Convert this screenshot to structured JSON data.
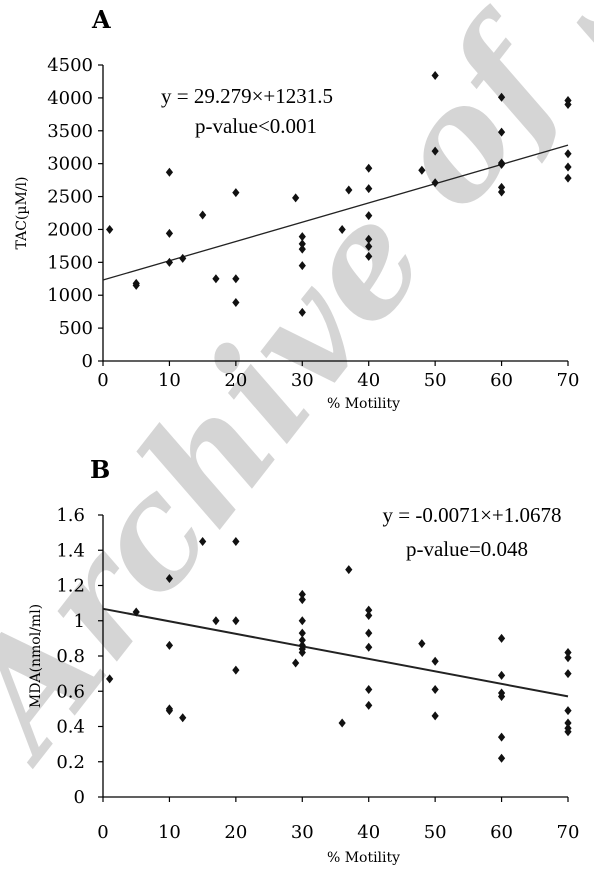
{
  "watermark": "Archive of SID",
  "chart_data": [
    {
      "type": "scatter",
      "panel": "A",
      "xlabel": "% Motility",
      "ylabel": "TAC(µM/l)",
      "xlim": [
        0,
        70
      ],
      "ylim": [
        0,
        4500
      ],
      "xticks": [
        0,
        10,
        20,
        30,
        40,
        50,
        60,
        70
      ],
      "yticks": [
        0,
        500,
        1000,
        1500,
        2000,
        2500,
        3000,
        3500,
        4000,
        4500
      ],
      "equation": "y = 29.279×+1231.5",
      "pvalue": "p-value<0.001",
      "trendline": {
        "slope": 29.279,
        "intercept": 1231.5
      },
      "grid": false,
      "points": [
        [
          1,
          2000
        ],
        [
          5,
          1150
        ],
        [
          5,
          1180
        ],
        [
          10,
          2870
        ],
        [
          10,
          1940
        ],
        [
          10,
          1500
        ],
        [
          12,
          1560
        ],
        [
          15,
          2220
        ],
        [
          17,
          1250
        ],
        [
          20,
          2560
        ],
        [
          20,
          1250
        ],
        [
          20,
          890
        ],
        [
          29,
          2480
        ],
        [
          30,
          1890
        ],
        [
          30,
          1780
        ],
        [
          30,
          1700
        ],
        [
          30,
          1450
        ],
        [
          30,
          740
        ],
        [
          36,
          2000
        ],
        [
          37,
          2600
        ],
        [
          40,
          2930
        ],
        [
          40,
          2620
        ],
        [
          40,
          2210
        ],
        [
          40,
          1850
        ],
        [
          40,
          1740
        ],
        [
          40,
          1590
        ],
        [
          48,
          2900
        ],
        [
          50,
          4340
        ],
        [
          50,
          3190
        ],
        [
          50,
          2710
        ],
        [
          60,
          4010
        ],
        [
          60,
          3480
        ],
        [
          60,
          3010
        ],
        [
          60,
          2990
        ],
        [
          60,
          2640
        ],
        [
          60,
          2570
        ],
        [
          70,
          3960
        ],
        [
          70,
          3900
        ],
        [
          70,
          3150
        ],
        [
          70,
          2950
        ],
        [
          70,
          2780
        ]
      ]
    },
    {
      "type": "scatter",
      "panel": "B",
      "xlabel": "% Motility",
      "ylabel": "MDA(nmol/ml)",
      "xlim": [
        0,
        70
      ],
      "ylim": [
        0,
        1.6
      ],
      "xticks": [
        0,
        10,
        20,
        30,
        40,
        50,
        60,
        70
      ],
      "yticks": [
        0,
        0.2,
        0.4,
        0.6,
        0.8,
        1,
        1.2,
        1.4,
        1.6
      ],
      "ytick_labels": [
        "0",
        "0.2",
        "0.4",
        "0.6",
        "0.8",
        "1",
        "1.2",
        "1.4",
        "1.6"
      ],
      "equation": "y = -0.0071×+1.0678",
      "pvalue": "p-value=0.048",
      "trendline": {
        "slope": -0.0071,
        "intercept": 1.0678
      },
      "grid": false,
      "points": [
        [
          1,
          0.67
        ],
        [
          5,
          1.05
        ],
        [
          10,
          1.24
        ],
        [
          10,
          0.86
        ],
        [
          10,
          0.5
        ],
        [
          10,
          0.49
        ],
        [
          12,
          0.45
        ],
        [
          15,
          1.45
        ],
        [
          17,
          1.0
        ],
        [
          20,
          1.45
        ],
        [
          20,
          1.0
        ],
        [
          20,
          0.72
        ],
        [
          29,
          0.76
        ],
        [
          30,
          1.15
        ],
        [
          30,
          1.12
        ],
        [
          30,
          1.0
        ],
        [
          30,
          0.93
        ],
        [
          30,
          0.89
        ],
        [
          30,
          0.86
        ],
        [
          30,
          0.84
        ],
        [
          30,
          0.82
        ],
        [
          36,
          0.42
        ],
        [
          37,
          1.29
        ],
        [
          40,
          1.06
        ],
        [
          40,
          1.03
        ],
        [
          40,
          0.93
        ],
        [
          40,
          0.85
        ],
        [
          40,
          0.61
        ],
        [
          40,
          0.52
        ],
        [
          48,
          0.87
        ],
        [
          50,
          0.77
        ],
        [
          50,
          0.61
        ],
        [
          50,
          0.46
        ],
        [
          60,
          0.9
        ],
        [
          60,
          0.69
        ],
        [
          60,
          0.59
        ],
        [
          60,
          0.57
        ],
        [
          60,
          0.34
        ],
        [
          60,
          0.22
        ],
        [
          70,
          0.82
        ],
        [
          70,
          0.79
        ],
        [
          70,
          0.7
        ],
        [
          70,
          0.49
        ],
        [
          70,
          0.42
        ],
        [
          70,
          0.39
        ],
        [
          70,
          0.37
        ]
      ]
    }
  ]
}
